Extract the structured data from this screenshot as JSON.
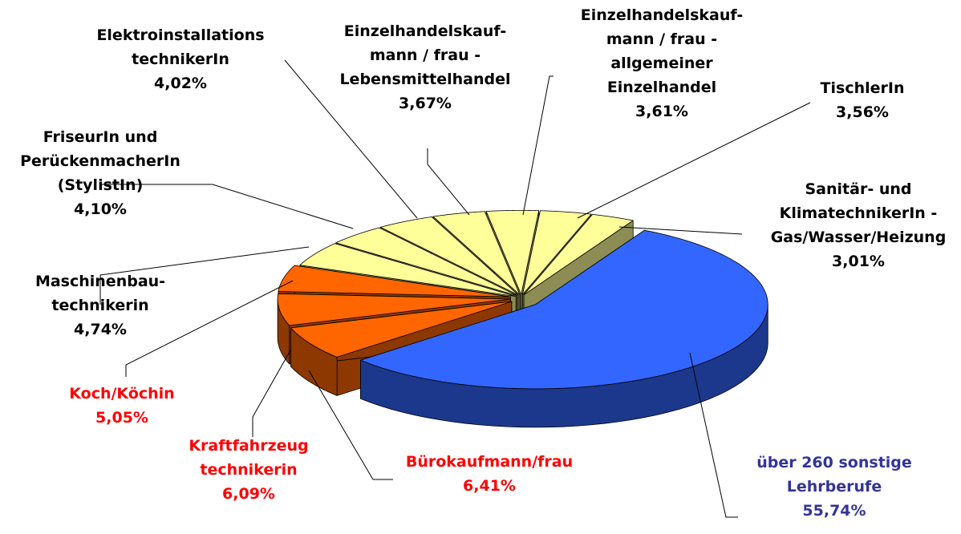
{
  "chart_data": {
    "type": "pie3d",
    "categories": [
      [
        "über 260 sonstige",
        "Lehrberufe"
      ],
      [
        "Bürokaufmann/frau"
      ],
      [
        "Kraftfahrzeug",
        "technikerin"
      ],
      [
        "Koch/Köchin"
      ],
      [
        "Maschinenbau-",
        "technikerin"
      ],
      [
        "FriseurIn und",
        "PerückenmacherIn",
        "(StylistIn)"
      ],
      [
        "Elektroinstallations",
        "technikerIn"
      ],
      [
        "Einzelhandelskauf-",
        "mann / frau -",
        "Lebensmittelhandel"
      ],
      [
        "Einzelhandelskauf-",
        "mann / frau -",
        "allgemeiner",
        "Einzelhandel"
      ],
      [
        "TischlerIn"
      ],
      [
        "Sanitär- und",
        "KlimatechnikerIn -",
        "Gas/Wasser/Heizung"
      ]
    ],
    "values": [
      55.74,
      6.41,
      6.09,
      5.05,
      4.74,
      4.1,
      4.02,
      3.67,
      3.61,
      3.56,
      3.01
    ],
    "value_labels": [
      "55,74%",
      "6,41%",
      "6,09%",
      "5,05%",
      "4,74%",
      "4,10%",
      "4,02%",
      "3,67%",
      "3,61%",
      "3,56%",
      "3,01%"
    ],
    "colors": [
      "#3366ff",
      "#ff6600",
      "#ff6600",
      "#ff6600",
      "#ffff99",
      "#ffff99",
      "#ffff99",
      "#ffff99",
      "#ffff99",
      "#ffff99",
      "#ffff99"
    ],
    "label_colors": [
      "#333399",
      "#ff0000",
      "#ff0000",
      "#ff0000",
      "#000000",
      "#000000",
      "#000000",
      "#000000",
      "#000000",
      "#000000",
      "#000000"
    ]
  }
}
